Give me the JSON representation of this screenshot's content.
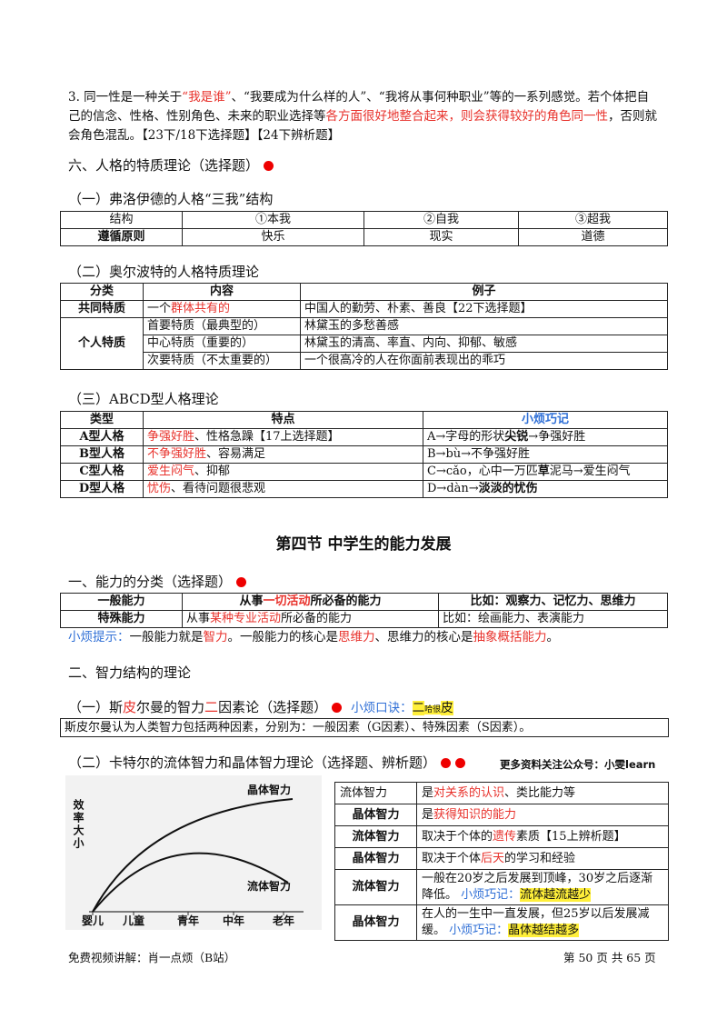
{
  "p1": [
    "3. 同一性是一种关于",
    {
      "text": "“我是谁”",
      "style": "red"
    },
    "、“我要成为什么样的人”、“我将从事何种职业”等的一系列感觉。若个体把自己的信念、性格、性别角色、未来的职业选择等",
    {
      "text": "各方面很好地整合起来，则会获得较好的角色同一性",
      "style": "red"
    },
    "，否则就会角色混乱。【23下/18下选择题】【24下辨析题】"
  ],
  "h1": "六、人格的特质理论（选择题）",
  "t1_title": "（一）弗洛伊德的人格“三我”结构",
  "t1": [
    [
      "结构",
      "①本我",
      "②自我",
      "③超我"
    ],
    [
      "遵循原则",
      "快乐",
      "现实",
      "道德"
    ]
  ],
  "t2_title": "（二）奥尔波特的人格特质理论",
  "t2": [
    [
      "分类",
      "内容",
      "例子"
    ],
    [
      "共同特质",
      [
        "一个",
        {
          "text": "群体共有的",
          "style": "red"
        }
      ],
      "中国人的勤劳、朴素、善良【22下选择题】"
    ],
    [
      "个人特质",
      "首要特质（最典型的）",
      "林黛玉的多愁善感"
    ],
    [
      "中心特质（重要的）",
      "林黛玉的清高、率直、内向、抑郁、敏感"
    ],
    [
      "次要特质（不太重要的）",
      "一个很高冷的人在你面前表现出的乖巧"
    ]
  ],
  "t3_title": "（三）ABCD型人格理论",
  "t3": [
    [
      "类型",
      "特点",
      [
        {
          "text": "小烦巧记",
          "style": "blue"
        }
      ]
    ],
    [
      "A型人格",
      [
        {
          "text": "争强好胜",
          "style": "red"
        },
        "、性格急躁【17上选择题】"
      ],
      [
        "A→字母的形状",
        {
          "text": "尖锐",
          "style": "bold"
        },
        "→争强好胜"
      ]
    ],
    [
      "B型人格",
      [
        {
          "text": "不争强好胜",
          "style": "red"
        },
        "、容易满足"
      ],
      "B→bù→不争强好胜"
    ],
    [
      "C型人格",
      [
        {
          "text": "爱生闷气",
          "style": "red"
        },
        "、抑郁"
      ],
      [
        "C→cǎo，心中一万匹",
        {
          "text": "草",
          "style": "bold"
        },
        "泥马→爱生闷气"
      ]
    ],
    [
      "D型人格",
      [
        {
          "text": "忧伤",
          "style": "red"
        },
        "、看待问题很悲观"
      ],
      [
        "D→dàn→",
        {
          "text": "淡淡的忧伤",
          "style": "bold"
        }
      ]
    ]
  ],
  "chapter": "第四节  中学生的能力发展",
  "h2": "一、能力的分类（选择题）",
  "t4": [
    [
      "一般能力",
      [
        "从事",
        {
          "text": "一切活动",
          "style": "red"
        },
        "所必备的能力"
      ],
      "比如：观察力、记忆力、思维力"
    ],
    [
      "特殊能力",
      [
        "从事",
        {
          "text": "某种专业活动",
          "style": "red"
        },
        "所必备的能力"
      ],
      "比如：绘画能力、表演能力"
    ]
  ],
  "tip": [
    {
      "text": "小烦提示：",
      "style": "blue"
    },
    "一般能力就是",
    {
      "text": "智力",
      "style": "red"
    },
    "。一般能力的核心是",
    {
      "text": "思维力",
      "style": "red"
    },
    "、思维力的核心是",
    {
      "text": "抽象概括能力",
      "style": "red"
    },
    "。"
  ],
  "h3": "二、智力结构的理论",
  "h3a": [
    "（一）斯",
    {
      "text": "皮",
      "style": "red"
    },
    "尔曼的智力",
    {
      "text": "二",
      "style": "red"
    },
    "因素论（选择题）"
  ],
  "h3a_tip": [
    {
      "text": "小烦口诀：",
      "style": "blue"
    },
    {
      "text": "二",
      "style": "hl"
    },
    {
      "text": "哈很",
      "style": "hl-small"
    },
    {
      "text": "皮",
      "style": "hl"
    }
  ],
  "box": "斯皮尔曼认为人类智力包括两种因素，分别为：一般因素（G因素）、特殊因素（S因素）。",
  "h3b": "（二）卡特尔的流体智力和晶体智力理论（选择题、辨析题）",
  "note": "更多资料关注公众号：小雯learn",
  "chart_labels": {
    "y": "效率大小",
    "crystal": "晶体智力",
    "fluid": "流体智力",
    "x": [
      "婴儿",
      "儿童",
      "青年",
      "中年",
      "老年"
    ]
  },
  "t5": [
    [
      "流体智力",
      [
        "是",
        {
          "text": "对关系的认识",
          "style": "red"
        },
        "、类比能力等"
      ]
    ],
    [
      "晶体智力",
      [
        "是",
        {
          "text": "获得知识的能力",
          "style": "red"
        }
      ]
    ],
    [
      "流体智力",
      [
        "取决于个体的",
        {
          "text": "遗传",
          "style": "red"
        },
        "素质【15上辨析题】"
      ]
    ],
    [
      "晶体智力",
      [
        "取决于个体",
        {
          "text": "后天",
          "style": "red"
        },
        "的学习和经验"
      ]
    ],
    [
      "流体智力",
      [
        "一般在20岁之后发展到顶峰，30岁之后逐渐降低。 ",
        {
          "text": "小烦巧记：",
          "style": "blue"
        },
        {
          "text": "流体越流越少",
          "style": "hl"
        }
      ]
    ],
    [
      "晶体智力",
      [
        "在人的一生中一直发展，但25岁以后发展减缓。 ",
        {
          "text": "小烦巧记：",
          "style": "blue"
        },
        {
          "text": "晶体越结越多",
          "style": "hl"
        }
      ]
    ]
  ],
  "footer_left": "免费视频讲解：肖一点烦（B站）",
  "footer_right": "第 50 页 共 65 页"
}
